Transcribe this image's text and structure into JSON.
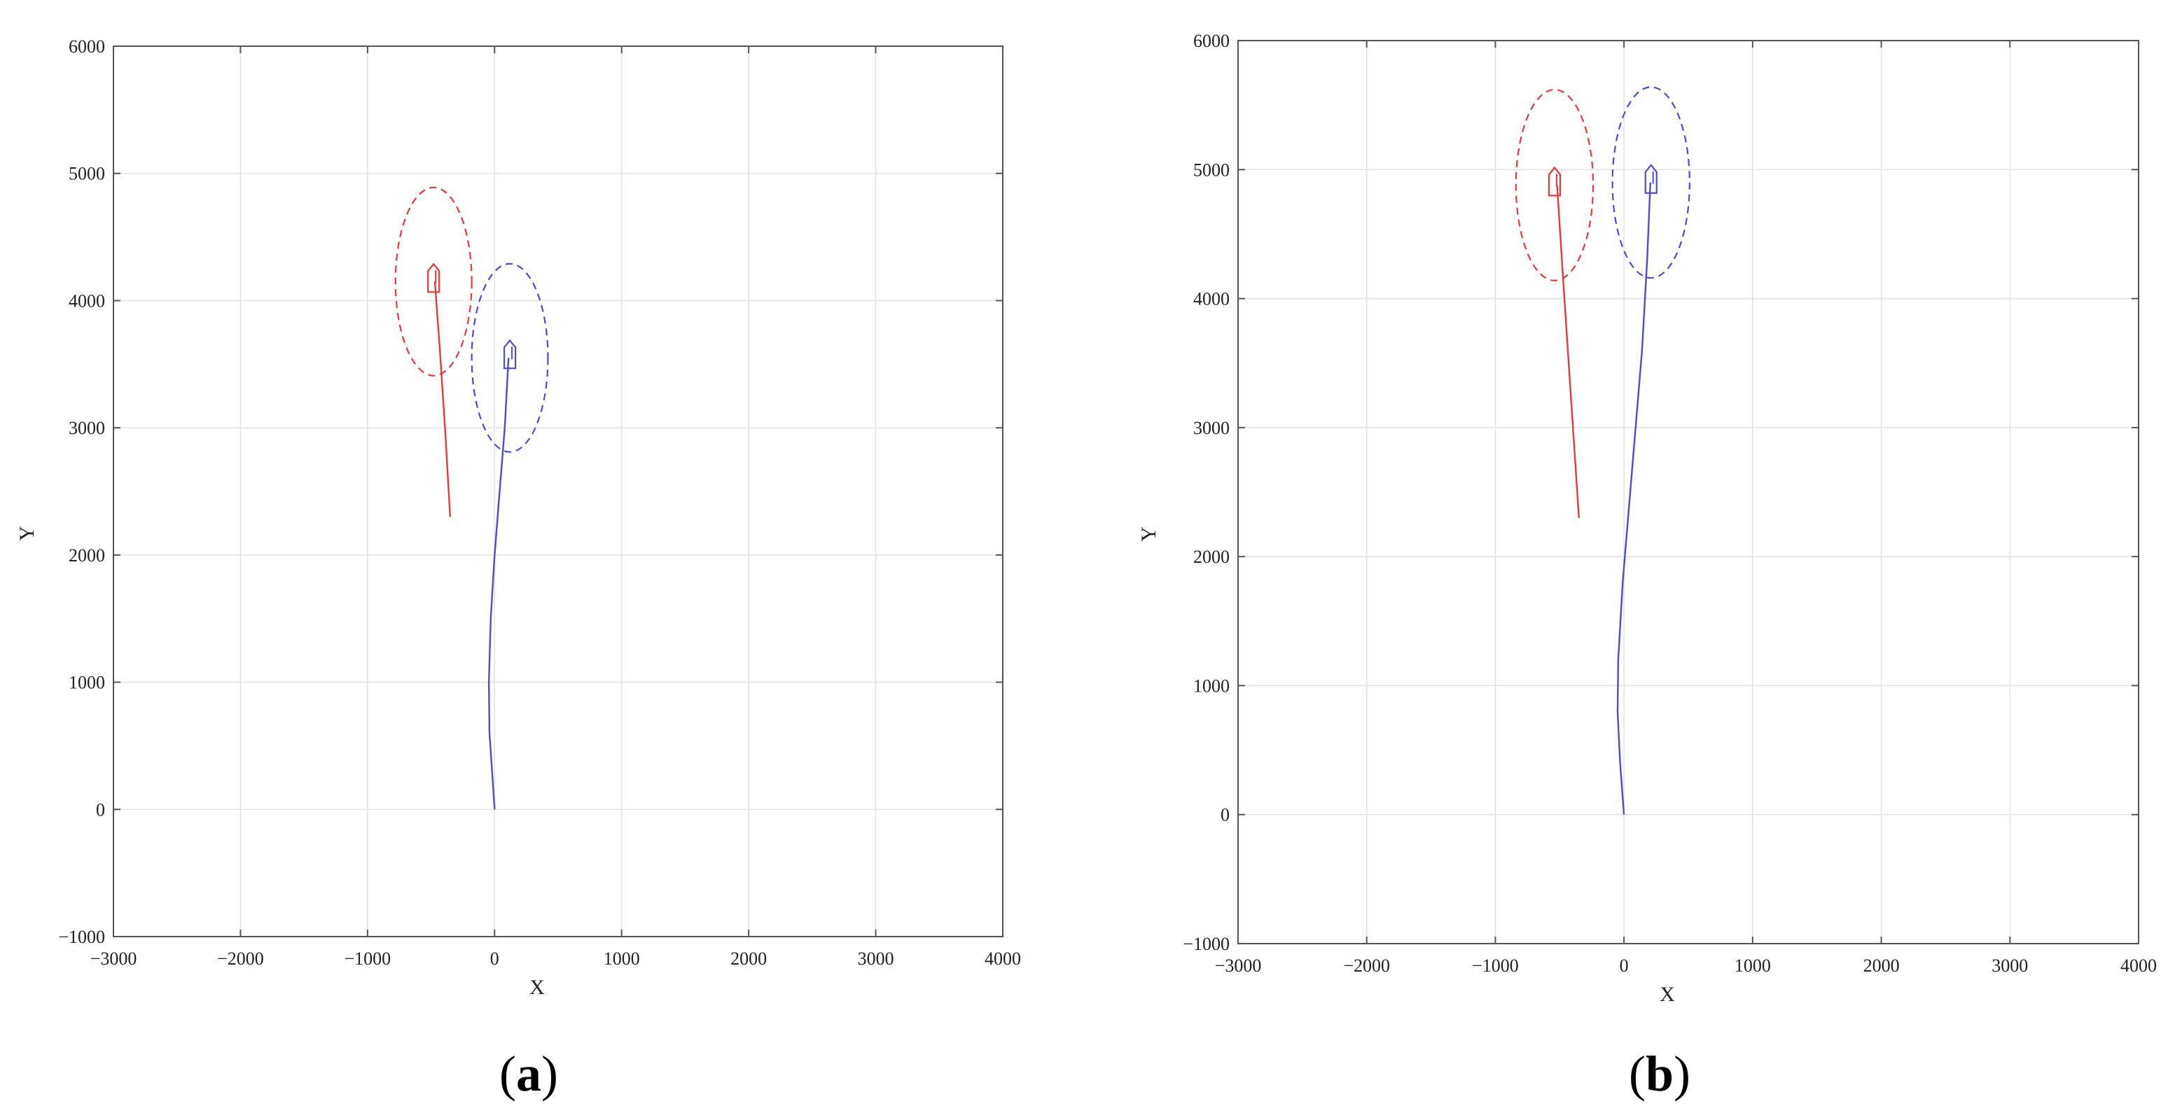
{
  "chart_data": [
    {
      "type": "line",
      "panel": "a",
      "caption": {
        "open": "(",
        "letter": "a",
        "close": ")"
      },
      "xlabel": "X",
      "ylabel": "Y",
      "xlim": [
        -3000,
        4000
      ],
      "ylim": [
        -1000,
        6000
      ],
      "xticks": [
        -3000,
        -2000,
        -1000,
        0,
        1000,
        2000,
        3000,
        4000
      ],
      "yticks": [
        -1000,
        0,
        1000,
        2000,
        3000,
        4000,
        5000,
        6000
      ],
      "xtick_labels": [
        "−3000",
        "−2000",
        "−1000",
        "0",
        "1000",
        "2000",
        "3000",
        "4000"
      ],
      "ytick_labels": [
        "−1000",
        "0",
        "1000",
        "2000",
        "3000",
        "4000",
        "5000",
        "6000"
      ],
      "grid": true,
      "series": [
        {
          "color": "#e8383d",
          "x": [
            -350,
            -390,
            -430,
            -470
          ],
          "y": [
            2300,
            3000,
            3600,
            4150
          ]
        },
        {
          "color": "#4b4bd6",
          "x": [
            0,
            -20,
            -40,
            -45,
            -30,
            0,
            40,
            80,
            110
          ],
          "y": [
            0,
            300,
            600,
            1000,
            1500,
            2000,
            2500,
            3000,
            3550
          ]
        }
      ],
      "ships": [
        {
          "color": "#e8383d",
          "x": -480,
          "y": 4150,
          "heading_deg": 0
        },
        {
          "color": "#4b4bd6",
          "x": 120,
          "y": 3550,
          "heading_deg": 0
        }
      ],
      "domains": [
        {
          "color": "#e8383d",
          "cx": -480,
          "cy": 4150,
          "rx": 300,
          "ry": 740
        },
        {
          "color": "#4b4bd6",
          "cx": 120,
          "cy": 3550,
          "rx": 300,
          "ry": 740
        }
      ]
    },
    {
      "type": "line",
      "panel": "b",
      "caption": {
        "open": "(",
        "letter": "b",
        "close": ")"
      },
      "xlabel": "X",
      "ylabel": "Y",
      "xlim": [
        -3000,
        4000
      ],
      "ylim": [
        -1000,
        6000
      ],
      "xticks": [
        -3000,
        -2000,
        -1000,
        0,
        1000,
        2000,
        3000,
        4000
      ],
      "yticks": [
        -1000,
        0,
        1000,
        2000,
        3000,
        4000,
        5000,
        6000
      ],
      "xtick_labels": [
        "−3000",
        "−2000",
        "−1000",
        "0",
        "1000",
        "2000",
        "3000",
        "4000"
      ],
      "ytick_labels": [
        "−1000",
        "0",
        "1000",
        "2000",
        "3000",
        "4000",
        "5000",
        "6000"
      ],
      "grid": true,
      "series": [
        {
          "color": "#e8383d",
          "x": [
            -350,
            -410,
            -470,
            -520
          ],
          "y": [
            2300,
            3200,
            4100,
            4880
          ]
        },
        {
          "color": "#4b4bd6",
          "x": [
            0,
            -30,
            -50,
            -45,
            -10,
            40,
            90,
            140,
            180,
            205
          ],
          "y": [
            0,
            400,
            800,
            1200,
            1800,
            2400,
            3000,
            3600,
            4300,
            4900
          ]
        }
      ],
      "ships": [
        {
          "color": "#e8383d",
          "x": -540,
          "y": 4880,
          "heading_deg": 0
        },
        {
          "color": "#4b4bd6",
          "x": 210,
          "y": 4900,
          "heading_deg": 0
        }
      ],
      "domains": [
        {
          "color": "#e8383d",
          "cx": -540,
          "cy": 4880,
          "rx": 300,
          "ry": 740
        },
        {
          "color": "#4b4bd6",
          "cx": 210,
          "cy": 4900,
          "rx": 300,
          "ry": 740
        }
      ]
    }
  ]
}
